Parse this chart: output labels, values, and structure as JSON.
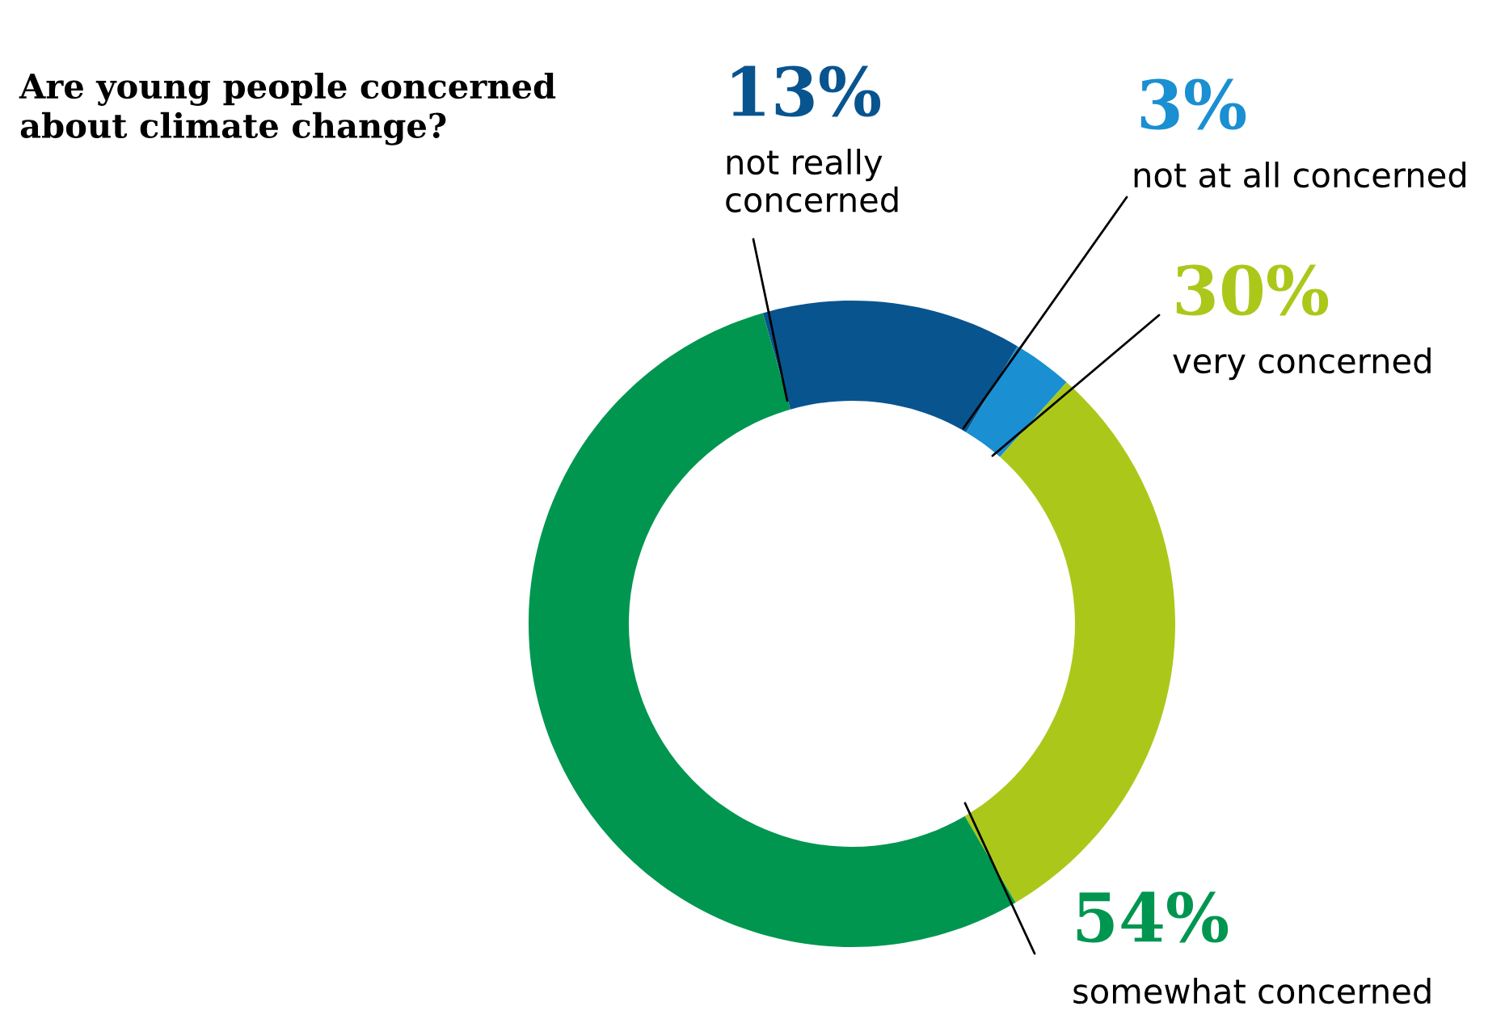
{
  "chart_data": {
    "type": "donut",
    "title": "Are young people concerned\nabout climate change?",
    "categories": [
      "not really\nconcerned",
      "not at all concerned",
      "very concerned",
      "somewhat concerned"
    ],
    "values": [
      13,
      3,
      30,
      54
    ],
    "value_labels": [
      "13%",
      "3%",
      "30%",
      "54%"
    ],
    "colors": [
      "#08548f",
      "#1a8fd1",
      "#abc81a",
      "#009650"
    ]
  }
}
